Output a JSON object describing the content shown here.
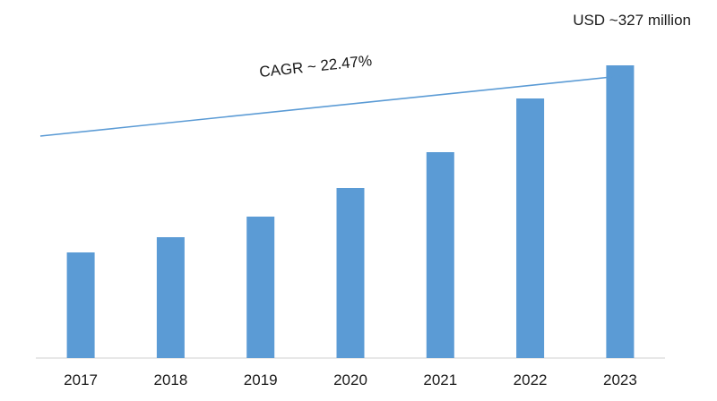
{
  "chart_data": {
    "type": "bar",
    "categories": [
      "2017",
      "2018",
      "2019",
      "2020",
      "2021",
      "2022",
      "2023"
    ],
    "values": [
      118,
      135,
      158,
      190,
      230,
      290,
      327
    ],
    "ylim": [
      0,
      380
    ],
    "grid": false,
    "legend": "none",
    "bar_color": "#5b9bd5",
    "trend_line": {
      "label": "CAGR ~ 22.47%",
      "color": "#5b9bd5",
      "from_value": 230,
      "to_value": 380
    },
    "annotations": [
      {
        "text": "USD ~327 million",
        "category": "2023"
      }
    ]
  }
}
